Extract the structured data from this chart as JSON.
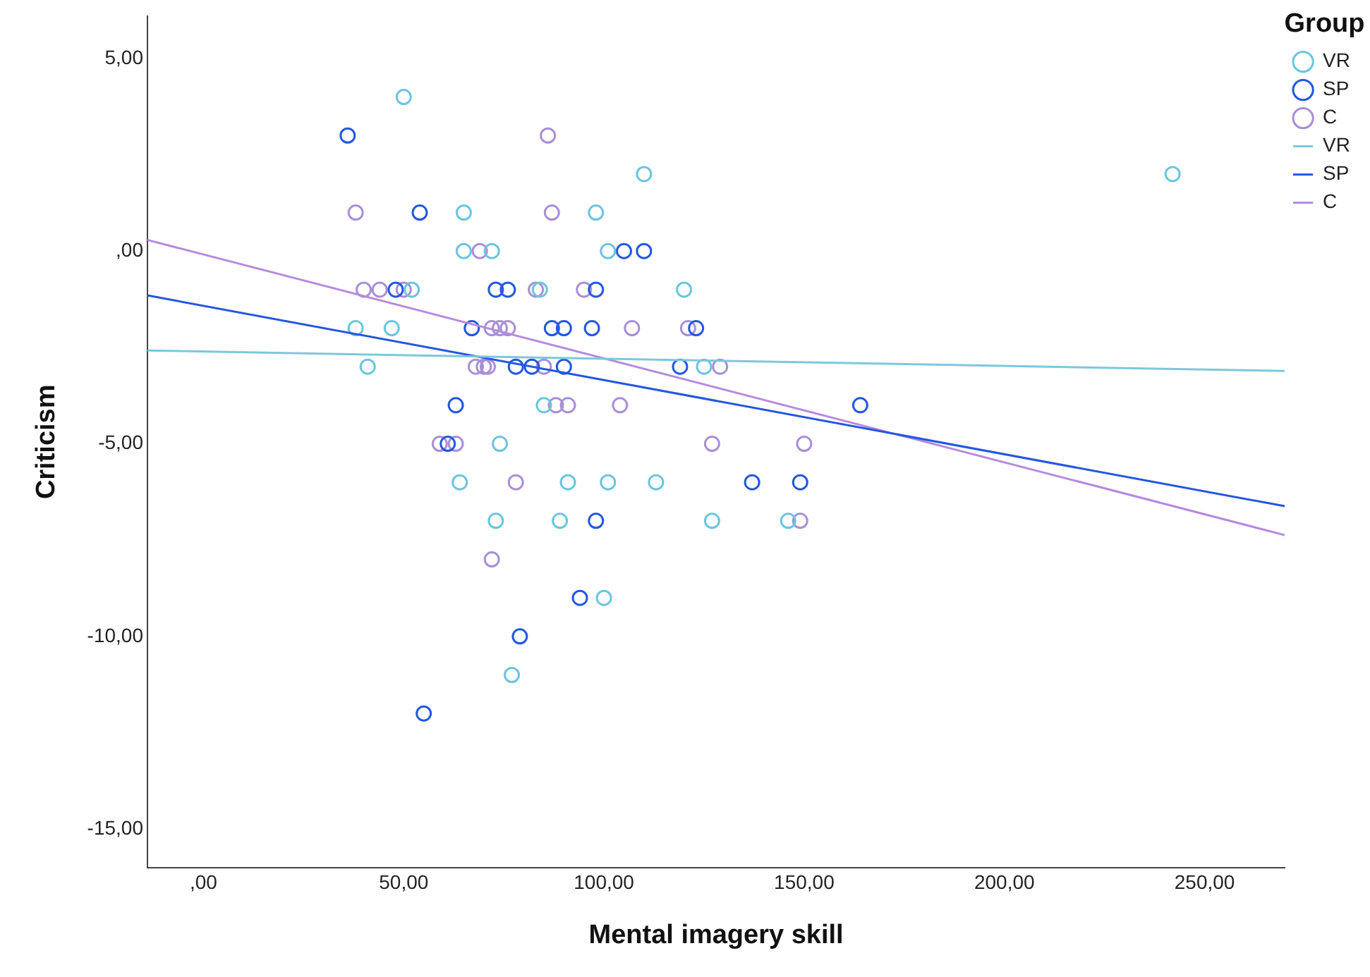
{
  "chart_data": {
    "type": "scatter",
    "xlabel": "Mental imagery skill",
    "ylabel": "Criticism",
    "legend_title": "Group",
    "legend": "top right",
    "grid": false,
    "marker": "circle",
    "xlim": [
      -14,
      270
    ],
    "ylim": [
      -16,
      6.1
    ],
    "xticks": [
      {
        "value": 0,
        "label": ",00"
      },
      {
        "value": 50,
        "label": "50,00"
      },
      {
        "value": 100,
        "label": "100,00"
      },
      {
        "value": 150,
        "label": "150,00"
      },
      {
        "value": 200,
        "label": "200,00"
      },
      {
        "value": 250,
        "label": "250,00"
      }
    ],
    "yticks": [
      {
        "value": -15,
        "label": "-15,00"
      },
      {
        "value": -10,
        "label": "-10,00"
      },
      {
        "value": -5,
        "label": "-5,00"
      },
      {
        "value": 0,
        "label": ",00"
      },
      {
        "value": 5,
        "label": "5,00"
      }
    ],
    "series": [
      {
        "name": "VR",
        "color": "#6cc5dc",
        "x": [
          50,
          110,
          242,
          65,
          98,
          65,
          72,
          101,
          52,
          84,
          120,
          38,
          47,
          41,
          125,
          85,
          74,
          64,
          91,
          101,
          113,
          73,
          89,
          127,
          146,
          100,
          77
        ],
        "values": [
          4,
          2,
          2,
          1,
          1,
          0,
          0,
          0,
          -1,
          -1,
          -1,
          -2,
          -2,
          -3,
          -3,
          -4,
          -5,
          -6,
          -6,
          -6,
          -6,
          -7,
          -7,
          -7,
          -7,
          -9,
          -11
        ]
      },
      {
        "name": "SP",
        "color": "#2457e0",
        "x": [
          36,
          54,
          105,
          110,
          48,
          73,
          76,
          98,
          67,
          87,
          90,
          97,
          123,
          78,
          82,
          90,
          119,
          63,
          164,
          61,
          137,
          149,
          98,
          94,
          79,
          55
        ],
        "values": [
          3,
          1,
          0,
          0,
          -1,
          -1,
          -1,
          -1,
          -2,
          -2,
          -2,
          -2,
          -2,
          -3,
          -3,
          -3,
          -3,
          -4,
          -4,
          -5,
          -6,
          -6,
          -7,
          -9,
          -10,
          -12
        ]
      },
      {
        "name": "C",
        "color": "#a98fd6",
        "x": [
          86,
          38,
          87,
          69,
          40,
          44,
          50,
          83,
          95,
          72,
          74,
          76,
          107,
          121,
          68,
          70,
          71,
          85,
          129,
          88,
          91,
          104,
          59,
          63,
          127,
          150,
          78,
          149,
          72
        ],
        "values": [
          3,
          1,
          1,
          0,
          -1,
          -1,
          -1,
          -1,
          -1,
          -2,
          -2,
          -2,
          -2,
          -2,
          -3,
          -3,
          -3,
          -3,
          -3,
          -4,
          -4,
          -4,
          -5,
          -5,
          -5,
          -5,
          -6,
          -7,
          -8
        ]
      },
      {
        "name": "VR",
        "type": "line",
        "marker": "none",
        "color": "#7cc8dc",
        "x": [
          -14,
          270
        ],
        "values": [
          -2.58,
          -3.11
        ]
      },
      {
        "name": "SP",
        "type": "line",
        "marker": "none",
        "color": "#2457e0",
        "x": [
          -14,
          270
        ],
        "values": [
          -1.15,
          -6.62
        ]
      },
      {
        "name": "C",
        "type": "line",
        "marker": "none",
        "color": "#b58ae0",
        "x": [
          -14,
          270
        ],
        "values": [
          0.29,
          -7.37
        ]
      }
    ]
  }
}
